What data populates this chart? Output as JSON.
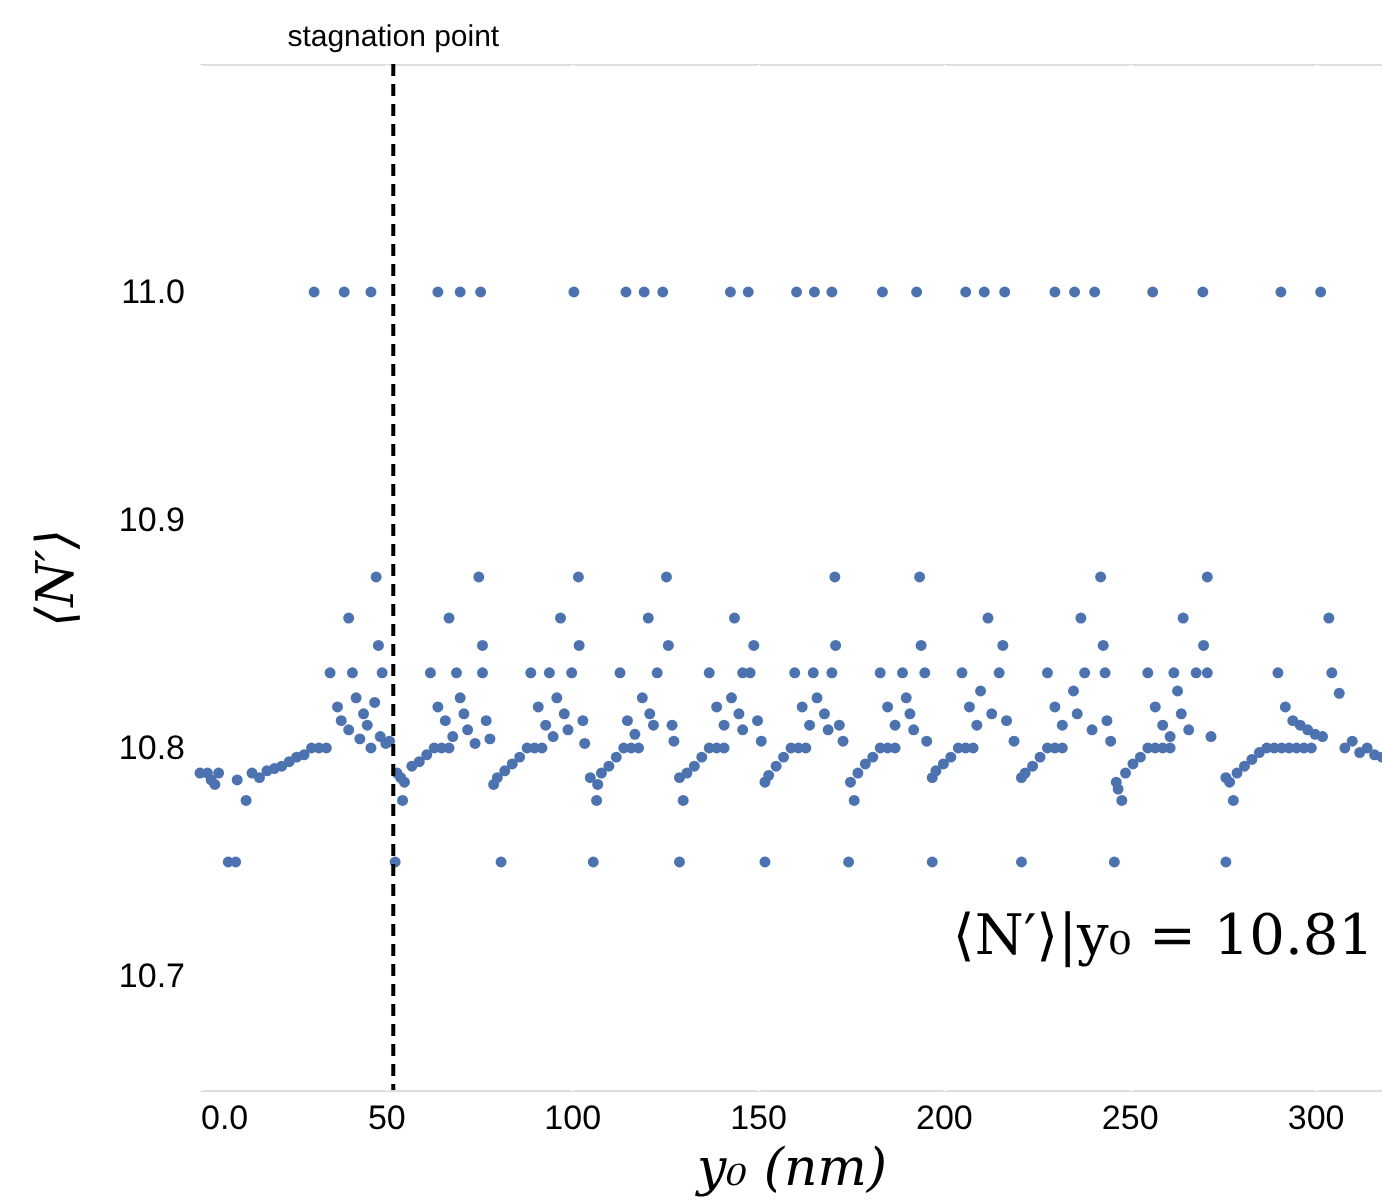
{
  "chart_data": {
    "type": "scatter",
    "xlabel": "y₀ (nm)",
    "ylabel": "⟨N′⟩",
    "xlim": [
      0,
      318
    ],
    "ylim": [
      10.65,
      11.1
    ],
    "xticks": [
      {
        "value": 0,
        "label": "0.0"
      },
      50,
      100,
      150,
      200,
      250,
      300
    ],
    "yticks": [
      10.7,
      10.8,
      10.9,
      {
        "value": 11,
        "label": "11.0"
      }
    ],
    "grid": true,
    "marker": "circle",
    "color": "#4c72b0",
    "ref_lines": [
      {
        "axis": "x",
        "value": 52,
        "label": "stagnation point",
        "color": "#000000",
        "line_style": "dashed"
      }
    ],
    "annotations": [
      "⟨N′⟩|y₀ = 10.81"
    ],
    "x": [
      0,
      2,
      3,
      4,
      5,
      7.6,
      9.6,
      10,
      12.4,
      14,
      16,
      18,
      20,
      22,
      24,
      26,
      28,
      30,
      32,
      34,
      35,
      37,
      38,
      40,
      40,
      41,
      42,
      43,
      44,
      45,
      46,
      47.4,
      47,
      48,
      48.5,
      49,
      50,
      51,
      30.7,
      38.8,
      46,
      52.5,
      53,
      54,
      54.5,
      55,
      57,
      59,
      61,
      63,
      65,
      67,
      62,
      64,
      66,
      68,
      67,
      69,
      70,
      71,
      72,
      74,
      75,
      76,
      76,
      77,
      78,
      64,
      70,
      75.5,
      79,
      80,
      81,
      82,
      84,
      86,
      88,
      90,
      92,
      89,
      91,
      93,
      95,
      94,
      97,
      96,
      98,
      99,
      100,
      101.8,
      102,
      103,
      103.5,
      100.6,
      105,
      105.8,
      106.7,
      107,
      108,
      110,
      112,
      114,
      116,
      118,
      113,
      115,
      117,
      120.6,
      119,
      121,
      122,
      123,
      125.5,
      126,
      127,
      127.5,
      114.6,
      119.5,
      124.5,
      129,
      129,
      130,
      131,
      133,
      135,
      137,
      139,
      141,
      137,
      139,
      141,
      143.8,
      143,
      145,
      146,
      146,
      148,
      149,
      150,
      151,
      142.7,
      147.5,
      152,
      152,
      153,
      155,
      157,
      159,
      161,
      163,
      160,
      162,
      164,
      165,
      166,
      168,
      169,
      170.8,
      171,
      170,
      172,
      173,
      160.5,
      165.3,
      170,
      174.5,
      175,
      176,
      177,
      179,
      181,
      183,
      185,
      187,
      183,
      185,
      187,
      189,
      190,
      191,
      192,
      193.6,
      194,
      195,
      195.5,
      183.6,
      192.8,
      197,
      197,
      198,
      200,
      202,
      204,
      206,
      208,
      205,
      207,
      209,
      212,
      210,
      213,
      215,
      216,
      217,
      219,
      206,
      211,
      216.5,
      221,
      221,
      222,
      224,
      226,
      228,
      230,
      232,
      228,
      230,
      232,
      237,
      235,
      236,
      238,
      240,
      242.3,
      243,
      243.5,
      244,
      245,
      230,
      235.3,
      240.7,
      246,
      246.5,
      247,
      248,
      249,
      251,
      253,
      255,
      257,
      259,
      261,
      255,
      257,
      259,
      261,
      262,
      264.5,
      263,
      264,
      266,
      268,
      271,
      270,
      271,
      272,
      256.3,
      269.8,
      276,
      276,
      277,
      278,
      279,
      281,
      283,
      285,
      287,
      289,
      291,
      293,
      295,
      297,
      299,
      290,
      292,
      294,
      296,
      298,
      300,
      303.7,
      302,
      304.5,
      306.5,
      308,
      310,
      312,
      314,
      316,
      318,
      290.8,
      301.5
    ],
    "values": [
      10.789,
      10.789,
      10.786,
      10.784,
      10.789,
      10.75,
      10.75,
      10.786,
      10.777,
      10.789,
      10.787,
      10.79,
      10.791,
      10.792,
      10.794,
      10.796,
      10.797,
      10.8,
      10.8,
      10.8,
      10.833,
      10.818,
      10.812,
      10.857,
      10.808,
      10.833,
      10.822,
      10.804,
      10.815,
      10.81,
      10.8,
      10.875,
      10.82,
      10.845,
      10.805,
      10.833,
      10.802,
      10.803,
      11,
      11,
      11,
      10.75,
      10.789,
      10.787,
      10.777,
      10.785,
      10.792,
      10.794,
      10.797,
      10.8,
      10.8,
      10.8,
      10.833,
      10.818,
      10.812,
      10.805,
      10.857,
      10.833,
      10.822,
      10.815,
      10.808,
      10.802,
      10.875,
      10.845,
      10.833,
      10.812,
      10.804,
      11,
      11,
      11,
      10.784,
      10.787,
      10.75,
      10.79,
      10.793,
      10.796,
      10.8,
      10.8,
      10.8,
      10.833,
      10.818,
      10.81,
      10.805,
      10.833,
      10.857,
      10.822,
      10.815,
      10.808,
      10.833,
      10.875,
      10.845,
      10.812,
      10.802,
      11,
      10.787,
      10.75,
      10.777,
      10.784,
      10.789,
      10.792,
      10.796,
      10.8,
      10.8,
      10.8,
      10.833,
      10.812,
      10.806,
      10.857,
      10.822,
      10.815,
      10.81,
      10.833,
      10.875,
      10.845,
      10.81,
      10.803,
      11,
      11,
      11,
      10.75,
      10.787,
      10.777,
      10.789,
      10.792,
      10.796,
      10.8,
      10.8,
      10.8,
      10.833,
      10.818,
      10.81,
      10.857,
      10.822,
      10.815,
      10.808,
      10.833,
      10.833,
      10.845,
      10.812,
      10.803,
      11,
      11,
      10.75,
      10.785,
      10.788,
      10.792,
      10.796,
      10.8,
      10.8,
      10.8,
      10.833,
      10.818,
      10.81,
      10.833,
      10.822,
      10.815,
      10.808,
      10.875,
      10.845,
      10.833,
      10.81,
      10.803,
      11,
      11,
      11,
      10.75,
      10.785,
      10.777,
      10.789,
      10.793,
      10.796,
      10.8,
      10.8,
      10.8,
      10.833,
      10.818,
      10.81,
      10.833,
      10.822,
      10.815,
      10.808,
      10.875,
      10.845,
      10.833,
      10.803,
      11,
      11,
      10.75,
      10.787,
      10.79,
      10.793,
      10.796,
      10.8,
      10.8,
      10.8,
      10.833,
      10.818,
      10.81,
      10.857,
      10.825,
      10.815,
      10.833,
      10.845,
      10.812,
      10.803,
      11,
      11,
      11,
      10.75,
      10.787,
      10.789,
      10.792,
      10.796,
      10.8,
      10.8,
      10.8,
      10.833,
      10.818,
      10.81,
      10.857,
      10.825,
      10.815,
      10.833,
      10.808,
      10.875,
      10.845,
      10.833,
      10.812,
      10.803,
      11,
      11,
      11,
      10.75,
      10.785,
      10.782,
      10.777,
      10.789,
      10.793,
      10.796,
      10.8,
      10.8,
      10.8,
      10.8,
      10.833,
      10.818,
      10.81,
      10.805,
      10.833,
      10.857,
      10.825,
      10.815,
      10.808,
      10.833,
      10.875,
      10.845,
      10.833,
      10.805,
      11,
      11,
      10.75,
      10.787,
      10.785,
      10.777,
      10.789,
      10.792,
      10.795,
      10.798,
      10.8,
      10.8,
      10.8,
      10.8,
      10.8,
      10.8,
      10.8,
      10.833,
      10.818,
      10.812,
      10.81,
      10.808,
      10.806,
      10.857,
      10.805,
      10.833,
      10.824,
      10.8,
      10.803,
      10.798,
      10.8,
      10.797,
      10.796,
      11,
      11
    ]
  }
}
